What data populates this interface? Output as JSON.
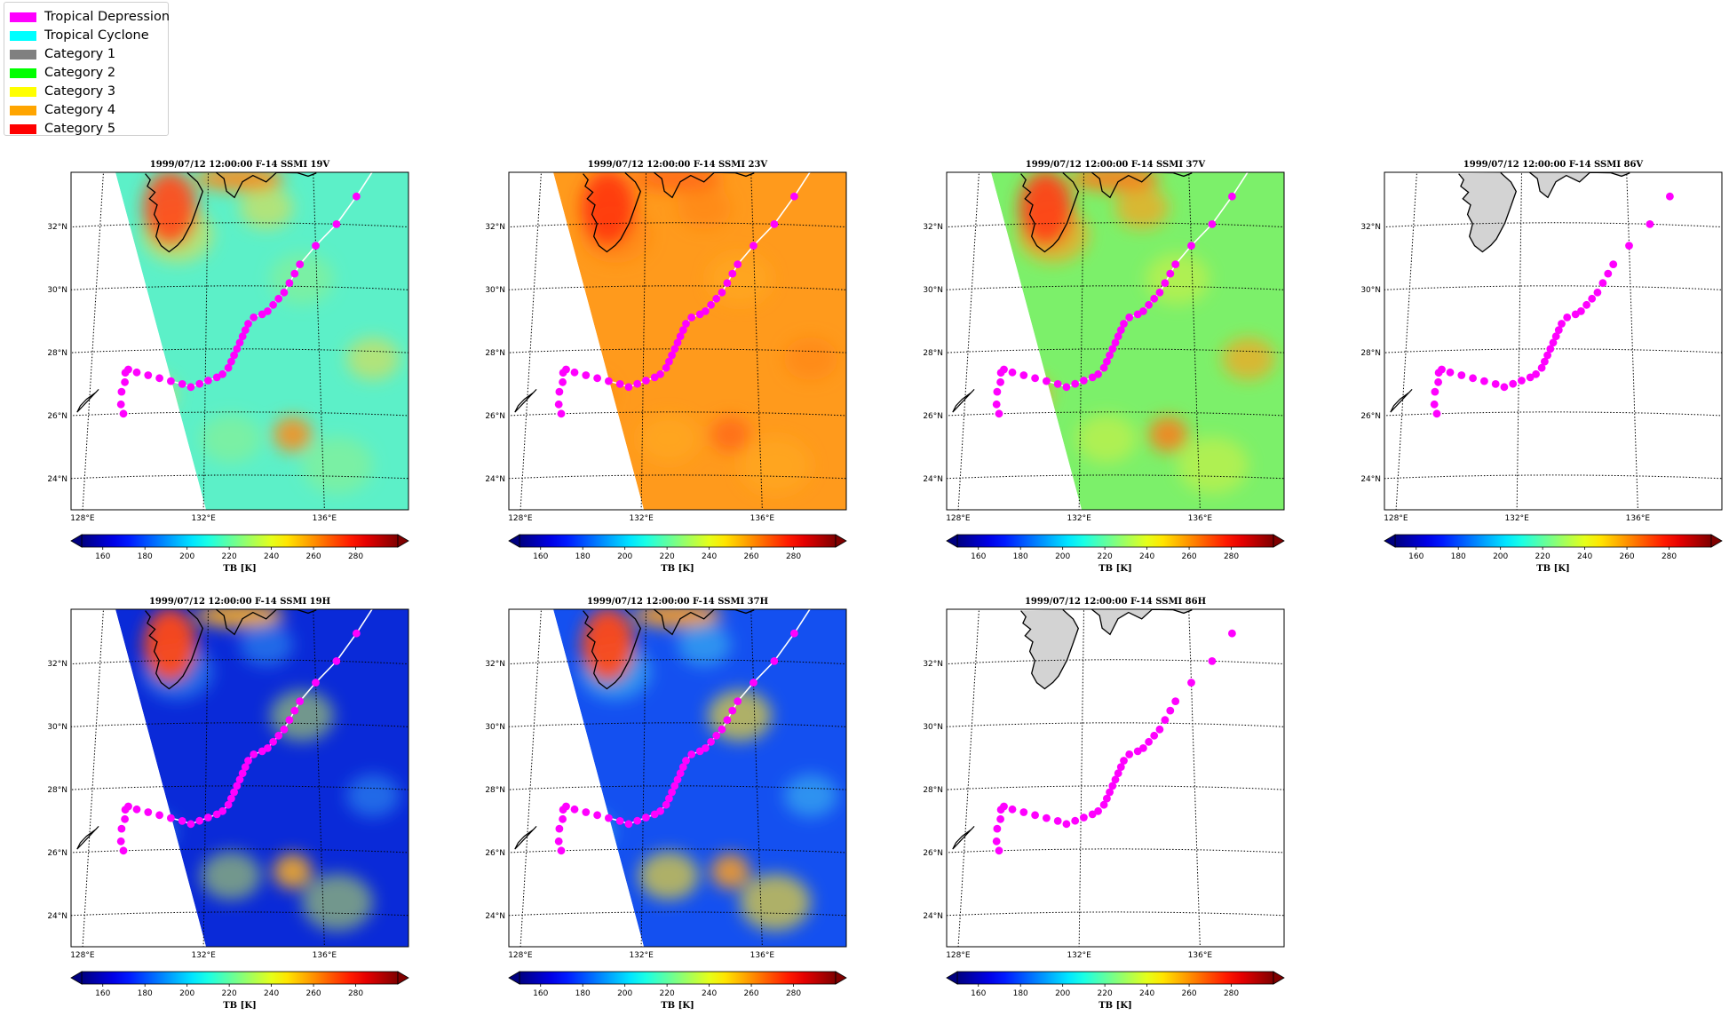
{
  "legend": {
    "items": [
      {
        "label": "Tropical Depression",
        "color": "#ff00ff"
      },
      {
        "label": "Tropical Cyclone",
        "color": "#00ffff"
      },
      {
        "label": "Category 1",
        "color": "#808080"
      },
      {
        "label": "Category 2",
        "color": "#00ff00"
      },
      {
        "label": "Category 3",
        "color": "#ffff00"
      },
      {
        "label": "Category 4",
        "color": "#ffa500"
      },
      {
        "label": "Category 5",
        "color": "#ff0000"
      }
    ]
  },
  "panels": [
    {
      "title": "1999/07/12 12:00:00  F-14 SSMI 19V",
      "channel": "19V",
      "has_data": true
    },
    {
      "title": "1999/07/12 12:00:00  F-14 SSMI 23V",
      "channel": "23V",
      "has_data": true
    },
    {
      "title": "1999/07/12 12:00:00  F-14 SSMI 37V",
      "channel": "37V",
      "has_data": true
    },
    {
      "title": "1999/07/12 12:00:00  F-14 SSMI 86V",
      "channel": "86V",
      "has_data": false
    },
    {
      "title": "1999/07/12 12:00:00  F-14 SSMI 19H",
      "channel": "19H",
      "has_data": true
    },
    {
      "title": "1999/07/12 12:00:00  F-14 SSMI 37H",
      "channel": "37H",
      "has_data": true
    },
    {
      "title": "1999/07/12 12:00:00  F-14 SSMI 86H",
      "channel": "86H",
      "has_data": false
    }
  ],
  "chart_data": {
    "type": "heatmap",
    "lat_ticks": [
      "24°N",
      "26°N",
      "28°N",
      "30°N",
      "32°N"
    ],
    "lon_ticks": [
      "128°E",
      "132°E",
      "136°E"
    ],
    "colorbar": {
      "label": "TB [K]",
      "ticks": [
        "160",
        "180",
        "200",
        "220",
        "240",
        "260",
        "280"
      ],
      "range": [
        150,
        300
      ],
      "colormap": "jet",
      "extend": "both"
    },
    "track": {
      "category": "Tropical Depression",
      "color": "#ff00ff",
      "points": [
        [
          26.0,
          129.2
        ],
        [
          26.3,
          129.1
        ],
        [
          26.7,
          129.1
        ],
        [
          27.0,
          129.2
        ],
        [
          27.3,
          129.2
        ],
        [
          27.4,
          129.3
        ],
        [
          27.3,
          129.6
        ],
        [
          27.2,
          130.0
        ],
        [
          27.1,
          130.4
        ],
        [
          27.0,
          130.8
        ],
        [
          26.9,
          131.2
        ],
        [
          26.8,
          131.5
        ],
        [
          26.9,
          131.8
        ],
        [
          27.0,
          132.1
        ],
        [
          27.1,
          132.4
        ],
        [
          27.2,
          132.6
        ],
        [
          27.4,
          132.8
        ],
        [
          27.6,
          132.9
        ],
        [
          27.8,
          133.0
        ],
        [
          28.0,
          133.1
        ],
        [
          28.2,
          133.2
        ],
        [
          28.4,
          133.3
        ],
        [
          28.6,
          133.4
        ],
        [
          28.8,
          133.5
        ],
        [
          29.0,
          133.7
        ],
        [
          29.1,
          134.0
        ],
        [
          29.2,
          134.2
        ],
        [
          29.4,
          134.4
        ],
        [
          29.6,
          134.6
        ],
        [
          29.8,
          134.8
        ],
        [
          30.1,
          135.0
        ],
        [
          30.4,
          135.2
        ],
        [
          30.7,
          135.4
        ],
        [
          31.3,
          136.0
        ],
        [
          32.0,
          136.8
        ],
        [
          32.9,
          137.6
        ]
      ]
    }
  }
}
